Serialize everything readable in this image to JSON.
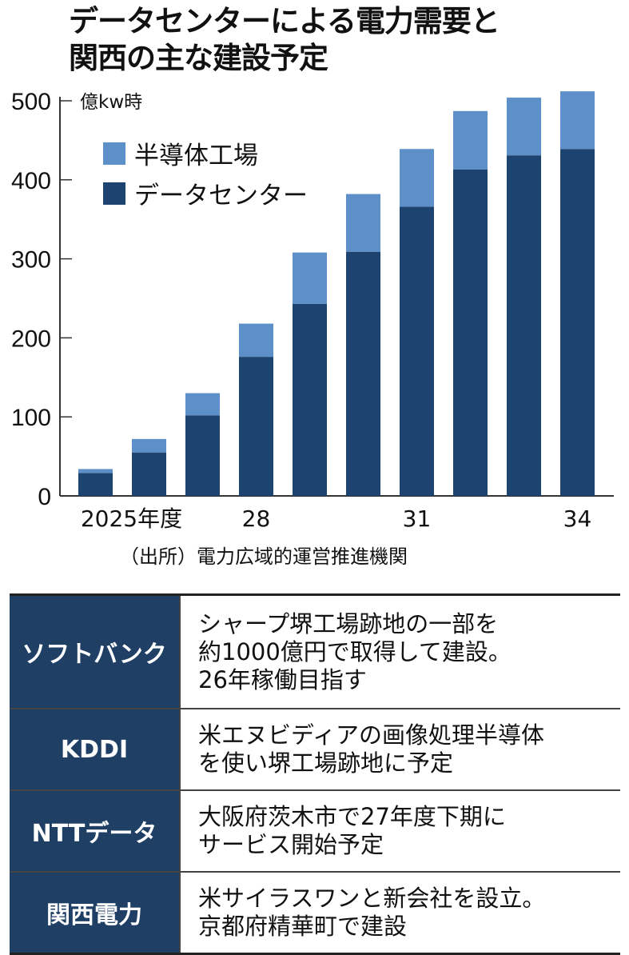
{
  "title_lines": [
    "データセンターによる電力需要と",
    "関西の主な建設予定"
  ],
  "source": "（出所）電力広域的運営推進機関",
  "colors": {
    "semiconductor": "#5d8fc8",
    "datacenter": "#1d4470",
    "table_header": "#1f3f65"
  },
  "chart_data": {
    "type": "bar",
    "stacked": true,
    "ylabel": "億kw時",
    "ylim": [
      0,
      500
    ],
    "yticks": [
      "0",
      "100",
      "200",
      "300",
      "400",
      "500"
    ],
    "categories": [
      "2025",
      "2026",
      "2027",
      "2028",
      "2029",
      "2030",
      "2031",
      "2032",
      "2033",
      "2034"
    ],
    "xtick_labels": [
      {
        "index": 0,
        "label": "2025年度"
      },
      {
        "index": 3,
        "label": "28"
      },
      {
        "index": 6,
        "label": "31"
      },
      {
        "index": 9,
        "label": "34"
      }
    ],
    "legend_position": "top-left",
    "series": [
      {
        "name": "データセンター",
        "values": [
          29,
          55,
          102,
          176,
          243,
          309,
          366,
          413,
          431,
          439
        ]
      },
      {
        "name": "半導体工場",
        "values": [
          5,
          17,
          28,
          42,
          65,
          73,
          73,
          74,
          73,
          73
        ]
      }
    ]
  },
  "table": [
    {
      "company": "ソフトバンク",
      "lines": [
        "シャープ堺工場跡地の一部を",
        "約1000億円で取得して建設。",
        "26年稼働目指す"
      ]
    },
    {
      "company": "KDDI",
      "lines": [
        "米エヌビディアの画像処理半導体",
        "を使い堺工場跡地に予定"
      ]
    },
    {
      "company": "NTTデータ",
      "lines": [
        "大阪府茨木市で27年度下期に",
        "サービス開始予定"
      ]
    },
    {
      "company": "関西電力",
      "lines": [
        "米サイラスワンと新会社を設立。",
        "京都府精華町で建設"
      ]
    }
  ]
}
